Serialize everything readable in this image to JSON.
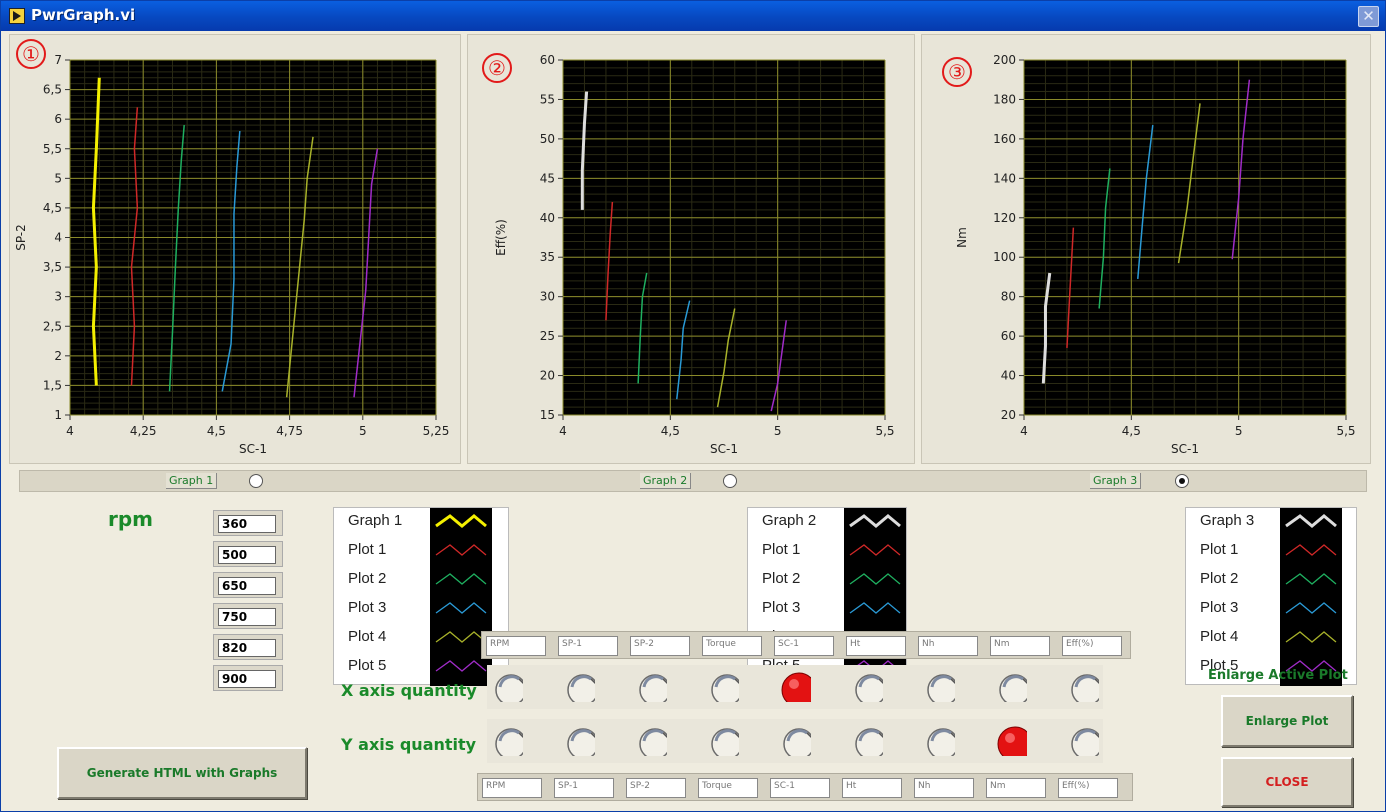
{
  "window": {
    "title": "PwrGraph.vi",
    "close_glyph": "✕"
  },
  "graphs": [
    {
      "number": "①",
      "xlabel": "SC-1",
      "ylabel": "SP-2",
      "xticks": [
        "4",
        "4,25",
        "4,5",
        "4,75",
        "5",
        "5,25"
      ],
      "yticks": [
        "1",
        "1,5",
        "2",
        "2,5",
        "3",
        "3,5",
        "4",
        "4,5",
        "5",
        "5,5",
        "6",
        "6,5",
        "7"
      ]
    },
    {
      "number": "②",
      "xlabel": "SC-1",
      "ylabel": "Eff(%)",
      "xticks": [
        "4",
        "4,5",
        "5",
        "5,5"
      ],
      "yticks": [
        "15",
        "20",
        "25",
        "30",
        "35",
        "40",
        "45",
        "50",
        "55",
        "60"
      ]
    },
    {
      "number": "③",
      "xlabel": "SC-1",
      "ylabel": "Nm",
      "xticks": [
        "4",
        "4,5",
        "5",
        "5,5"
      ],
      "yticks": [
        "20",
        "40",
        "60",
        "80",
        "100",
        "120",
        "140",
        "160",
        "180",
        "200"
      ]
    }
  ],
  "chart_data": [
    {
      "type": "line",
      "xlabel": "SC-1",
      "ylabel": "SP-2",
      "xlim": [
        4,
        5.25
      ],
      "ylim": [
        1,
        7
      ],
      "series": [
        {
          "name": "Graph 1",
          "color": "#F4F000",
          "x": [
            4.09,
            4.08,
            4.09,
            4.08,
            4.09,
            4.1
          ],
          "y": [
            1.5,
            2.5,
            3.5,
            4.5,
            5.5,
            6.7
          ]
        },
        {
          "name": "Plot 1",
          "color": "#D02828",
          "x": [
            4.21,
            4.22,
            4.21,
            4.23,
            4.22,
            4.23
          ],
          "y": [
            1.5,
            2.5,
            3.5,
            4.5,
            5.5,
            6.2
          ]
        },
        {
          "name": "Plot 2",
          "color": "#1FB060",
          "x": [
            4.34,
            4.35,
            4.36,
            4.37,
            4.38,
            4.39
          ],
          "y": [
            1.4,
            2.4,
            3.5,
            4.5,
            5.3,
            5.9
          ]
        },
        {
          "name": "Plot 3",
          "color": "#2A9AD6",
          "x": [
            4.52,
            4.55,
            4.56,
            4.56,
            4.57,
            4.58
          ],
          "y": [
            1.4,
            2.2,
            3.3,
            4.4,
            5.2,
            5.8
          ]
        },
        {
          "name": "Plot 4",
          "color": "#A8B22A",
          "x": [
            4.74,
            4.76,
            4.78,
            4.8,
            4.81,
            4.83
          ],
          "y": [
            1.3,
            2.3,
            3.3,
            4.3,
            5.0,
            5.7
          ]
        },
        {
          "name": "Plot 5",
          "color": "#A02CC8",
          "x": [
            4.97,
            4.99,
            5.01,
            5.02,
            5.03,
            5.05
          ],
          "y": [
            1.3,
            2.2,
            3.1,
            4.0,
            4.9,
            5.5
          ]
        }
      ]
    },
    {
      "type": "line",
      "xlabel": "SC-1",
      "ylabel": "Eff(%)",
      "xlim": [
        4,
        5.5
      ],
      "ylim": [
        15,
        60
      ],
      "series": [
        {
          "name": "Graph 2",
          "color": "#DDDDDD",
          "x": [
            4.09,
            4.09,
            4.1,
            4.11
          ],
          "y": [
            41,
            46,
            52,
            56
          ]
        },
        {
          "name": "Plot 1",
          "color": "#D02828",
          "x": [
            4.2,
            4.21,
            4.22,
            4.23
          ],
          "y": [
            27,
            33,
            38,
            42
          ]
        },
        {
          "name": "Plot 2",
          "color": "#1FB060",
          "x": [
            4.35,
            4.36,
            4.37,
            4.39
          ],
          "y": [
            19,
            25,
            30,
            33
          ]
        },
        {
          "name": "Plot 3",
          "color": "#2A9AD6",
          "x": [
            4.53,
            4.55,
            4.56,
            4.59
          ],
          "y": [
            17,
            22,
            26,
            29.5
          ]
        },
        {
          "name": "Plot 4",
          "color": "#A8B22A",
          "x": [
            4.72,
            4.75,
            4.77,
            4.8
          ],
          "y": [
            16,
            20.5,
            24.5,
            28.5
          ]
        },
        {
          "name": "Plot 5",
          "color": "#A02CC8",
          "x": [
            4.97,
            5.0,
            5.02,
            5.04
          ],
          "y": [
            15.5,
            19,
            23,
            27
          ]
        }
      ]
    },
    {
      "type": "line",
      "xlabel": "SC-1",
      "ylabel": "Nm",
      "xlim": [
        4,
        5.5
      ],
      "ylim": [
        20,
        200
      ],
      "series": [
        {
          "name": "Graph 3",
          "color": "#DDDDDD",
          "x": [
            4.09,
            4.1,
            4.1,
            4.12
          ],
          "y": [
            36,
            55,
            75,
            92
          ]
        },
        {
          "name": "Plot 1",
          "color": "#D02828",
          "x": [
            4.2,
            4.21,
            4.22,
            4.23
          ],
          "y": [
            54,
            75,
            95,
            115
          ]
        },
        {
          "name": "Plot 2",
          "color": "#1FB060",
          "x": [
            4.35,
            4.37,
            4.38,
            4.4
          ],
          "y": [
            74,
            100,
            125,
            145
          ]
        },
        {
          "name": "Plot 3",
          "color": "#2A9AD6",
          "x": [
            4.53,
            4.55,
            4.57,
            4.6
          ],
          "y": [
            89,
            115,
            140,
            167
          ]
        },
        {
          "name": "Plot 4",
          "color": "#A8B22A",
          "x": [
            4.72,
            4.76,
            4.79,
            4.82
          ],
          "y": [
            97,
            125,
            152,
            178
          ]
        },
        {
          "name": "Plot 5",
          "color": "#A02CC8",
          "x": [
            4.97,
            5.0,
            5.02,
            5.05
          ],
          "y": [
            99,
            130,
            160,
            190
          ]
        }
      ]
    }
  ],
  "selector": {
    "labels": [
      "Graph 1",
      "Graph 2",
      "Graph 3"
    ],
    "selected": 2
  },
  "rpm": {
    "title": "rpm",
    "values": [
      "360",
      "500",
      "650",
      "750",
      "820",
      "900"
    ]
  },
  "legends": [
    {
      "items": [
        "Graph 1",
        "Plot 1",
        "Plot 2",
        "Plot 3",
        "Plot 4",
        "Plot 5"
      ]
    },
    {
      "items": [
        "Graph 2",
        "Plot 1",
        "Plot 2",
        "Plot 3",
        "Plot 4",
        "Plot 5"
      ]
    },
    {
      "items": [
        "Graph 3",
        "Plot 1",
        "Plot 2",
        "Plot 3",
        "Plot 4",
        "Plot 5"
      ]
    }
  ],
  "legend_colors": [
    [
      "#F4F000",
      "#D02828",
      "#1FB060",
      "#2A9AD6",
      "#A8B22A",
      "#A02CC8"
    ],
    [
      "#DDDDDD",
      "#D02828",
      "#1FB060",
      "#2A9AD6",
      "#A8B22A",
      "#A02CC8"
    ],
    [
      "#DDDDDD",
      "#D02828",
      "#1FB060",
      "#2A9AD6",
      "#A8B22A",
      "#A02CC8"
    ]
  ],
  "quantities_top": [
    "RPM",
    "SP-1",
    "SP-2",
    "Torque",
    "SC-1",
    "Ht",
    "Nh",
    "Nm",
    "Eff(%)"
  ],
  "quantities_bottom": [
    "RPM",
    "SP-1",
    "SP-2",
    "Torque",
    "SC-1",
    "Ht",
    "Nh",
    "Nm",
    "Eff(%)"
  ],
  "x_axis": {
    "label": "X axis quantity",
    "selected": 4
  },
  "y_axis": {
    "label": "Y axis quantity",
    "selected": 7
  },
  "buttons": {
    "generate": "Generate HTML with Graphs",
    "enlarge_title": "Enlarge Active Plot",
    "enlarge": "Enlarge Plot",
    "close": "CLOSE"
  }
}
